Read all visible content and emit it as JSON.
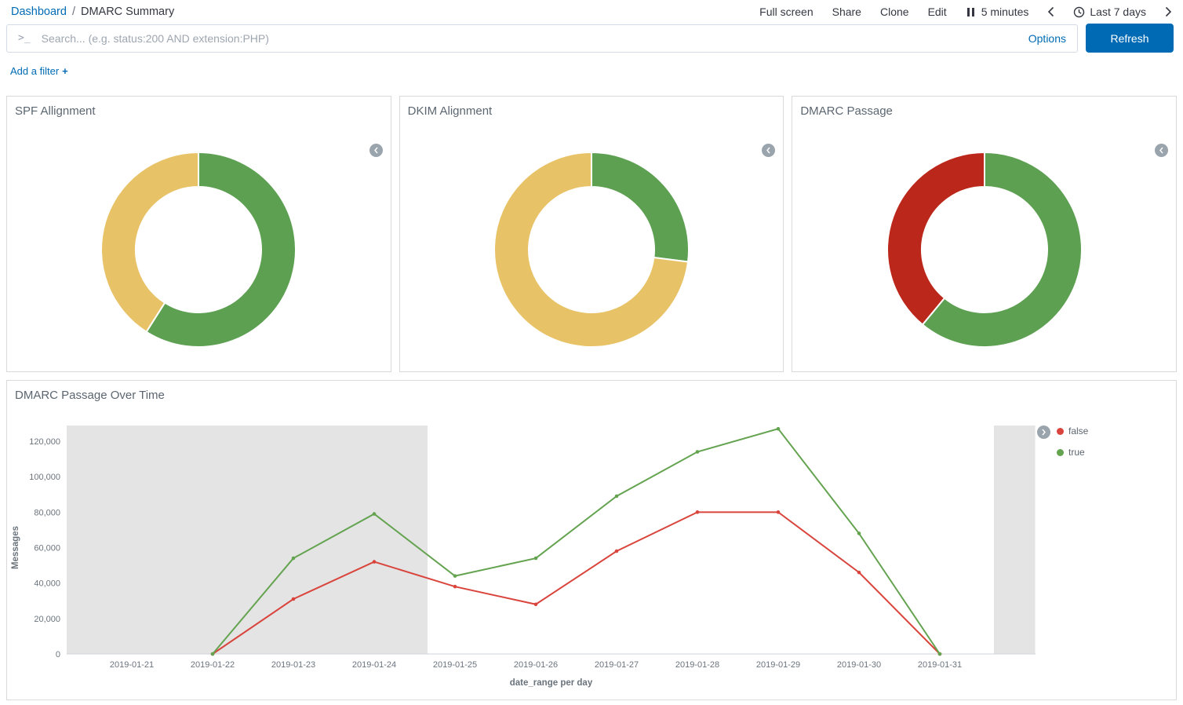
{
  "breadcrumb": {
    "root": "Dashboard",
    "separator": "/",
    "current": "DMARC Summary"
  },
  "topnav": {
    "full_screen": "Full screen",
    "share": "Share",
    "clone": "Clone",
    "edit": "Edit",
    "refresh_interval": "5 minutes",
    "time_range": "Last 7 days"
  },
  "search": {
    "placeholder": "Search... (e.g. status:200 AND extension:PHP)",
    "options_label": "Options",
    "refresh_label": "Refresh"
  },
  "filter_bar": {
    "add_filter_label": "Add a filter",
    "plus": "+"
  },
  "colors": {
    "link": "#006BB4",
    "primary_button": "#006BB4",
    "donut_green": "#5da052",
    "donut_yellow": "#e8c267",
    "donut_red": "#bb271a",
    "line_red": "#d9453c",
    "line_green": "#64a350",
    "shaded_band": "#e4e4e4"
  },
  "chart_data": [
    {
      "type": "pie",
      "title": "SPF Allignment",
      "donut": true,
      "legend": "collapsed",
      "segments": [
        {
          "color": "#5da052",
          "percent": 59
        },
        {
          "color": "#e8c267",
          "percent": 41
        }
      ]
    },
    {
      "type": "pie",
      "title": "DKIM Alignment",
      "donut": true,
      "legend": "collapsed",
      "segments": [
        {
          "color": "#5da052",
          "percent": 27
        },
        {
          "color": "#e8c267",
          "percent": 73
        }
      ]
    },
    {
      "type": "pie",
      "title": "DMARC Passage",
      "donut": true,
      "legend": "collapsed",
      "segments": [
        {
          "color": "#5da052",
          "percent": 61
        },
        {
          "color": "#bb271a",
          "percent": 39
        }
      ]
    },
    {
      "type": "line",
      "title": "DMARC Passage Over Time",
      "xlabel": "date_range per day",
      "ylabel": "Messages",
      "ylim": [
        0,
        120000
      ],
      "ytick_step": 20000,
      "grid": false,
      "legend_position": "right",
      "categories": [
        "2019-01-21",
        "2019-01-22",
        "2019-01-23",
        "2019-01-24",
        "2019-01-25",
        "2019-01-26",
        "2019-01-27",
        "2019-01-28",
        "2019-01-29",
        "2019-01-30",
        "2019-01-31"
      ],
      "series": [
        {
          "name": "false",
          "color": "#d9453c",
          "values": [
            null,
            0,
            31000,
            52000,
            38000,
            28000,
            58000,
            80000,
            80000,
            46000,
            0
          ]
        },
        {
          "name": "true",
          "color": "#64a350",
          "values": [
            null,
            0,
            54000,
            79000,
            44000,
            54000,
            89000,
            114000,
            127000,
            68000,
            0
          ]
        }
      ],
      "shaded_bands_x": [
        [
          -0.81,
          3.66
        ],
        [
          10.67,
          11.18
        ]
      ]
    }
  ]
}
